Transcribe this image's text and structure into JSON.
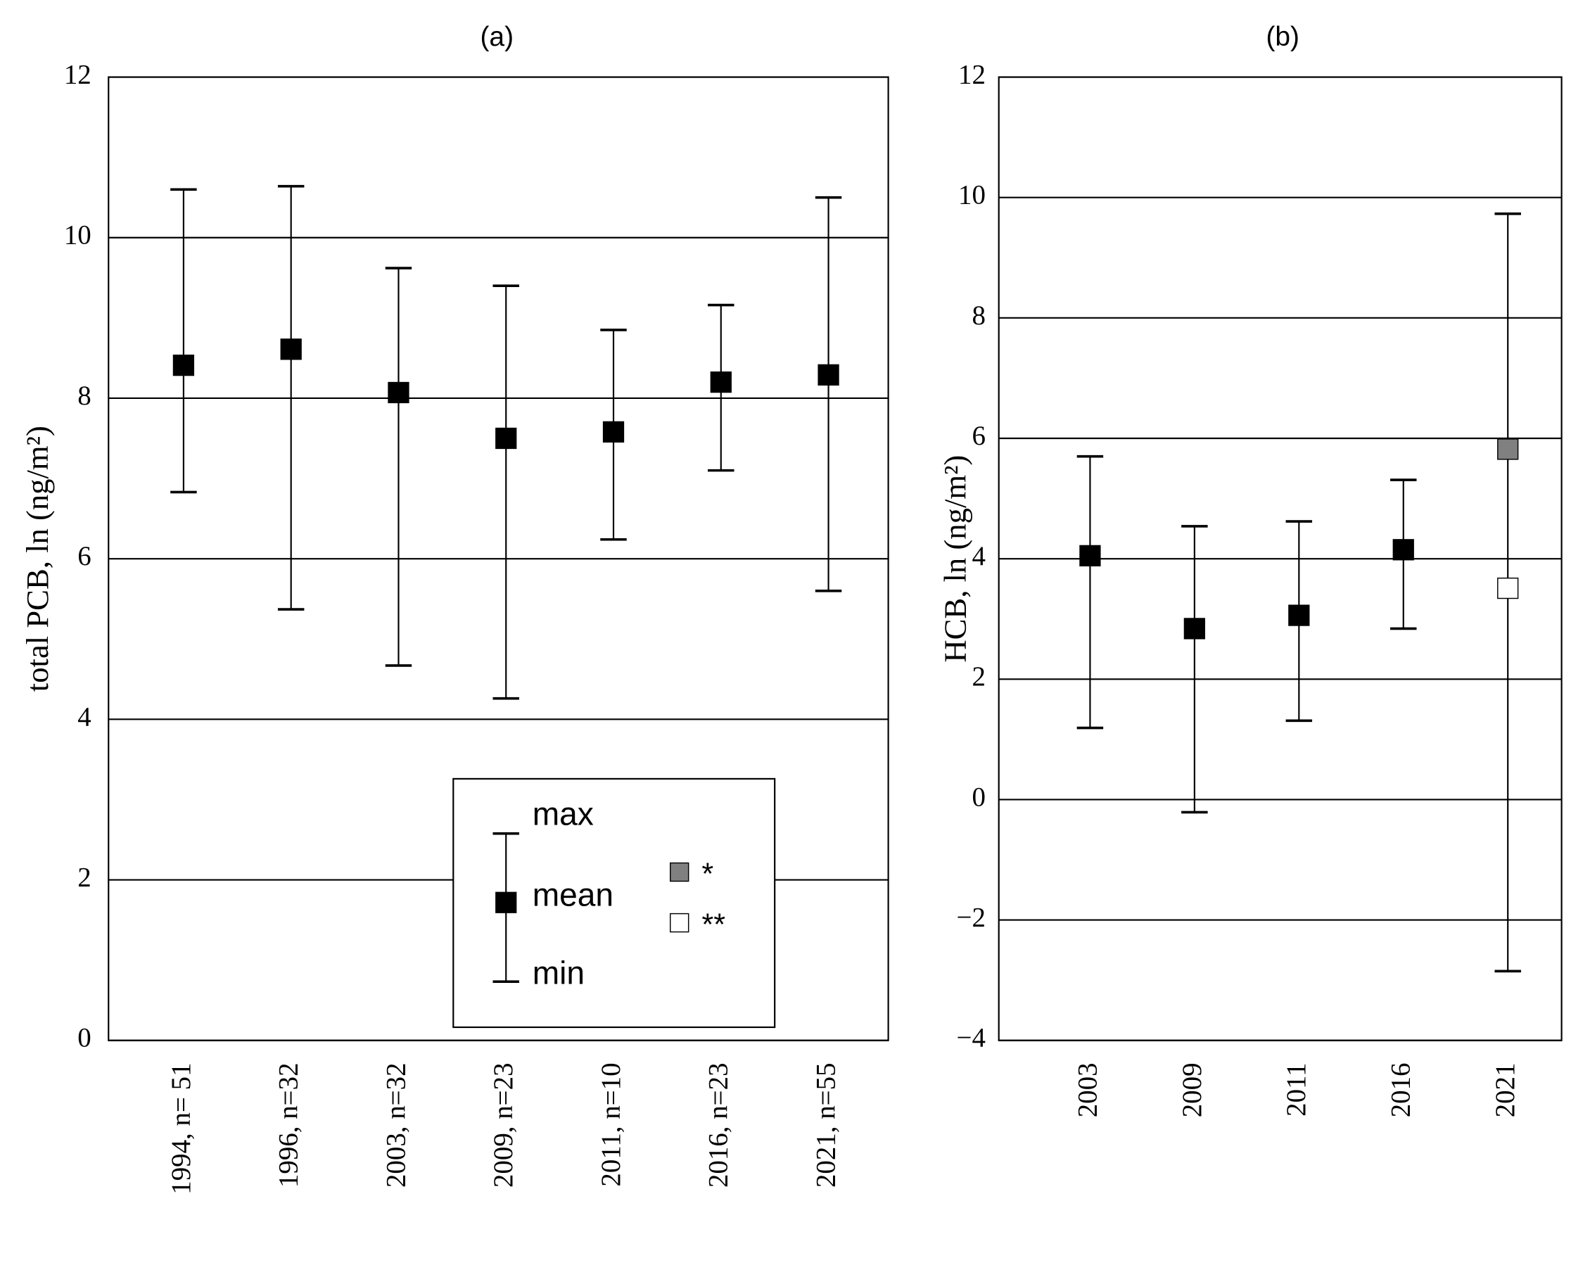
{
  "chart_data": [
    {
      "type": "errorbar",
      "title": "(a)",
      "y_label": "total PCB, ln (ng/m²)",
      "categories": [
        "1994, n= 51",
        "1996, n=32",
        "2003, n=32",
        "2009, n=23",
        "2011, n=10",
        "2016, n=23",
        "2021, n=55"
      ],
      "series": [
        {
          "name": "max",
          "values": [
            10.6,
            10.64,
            9.62,
            9.4,
            8.85,
            9.16,
            10.5
          ]
        },
        {
          "name": "mean",
          "color": "#000000",
          "values": [
            8.41,
            8.61,
            8.07,
            7.5,
            7.58,
            8.2,
            8.29
          ]
        },
        {
          "name": "min",
          "values": [
            6.83,
            5.37,
            4.67,
            4.26,
            6.24,
            7.1,
            5.6
          ]
        }
      ],
      "ylim": [
        0,
        12
      ],
      "yticks": [
        0,
        2,
        4,
        6,
        8,
        10,
        12
      ],
      "grid": true
    },
    {
      "type": "errorbar",
      "title": "(b)",
      "y_label": "HCB, ln (ng/m²)",
      "categories": [
        "2003",
        "2009",
        "2011",
        "2016",
        "2021"
      ],
      "series": [
        {
          "name": "max",
          "values": [
            5.7,
            4.54,
            4.62,
            5.31,
            9.73
          ]
        },
        {
          "name": "mean",
          "color": "#000000",
          "values": [
            4.05,
            2.84,
            3.06,
            4.15,
            null
          ]
        },
        {
          "name": "min",
          "values": [
            1.19,
            -0.21,
            1.31,
            2.84,
            -2.85
          ]
        },
        {
          "name": "*",
          "color": "#808080",
          "values": [
            null,
            null,
            null,
            null,
            5.82
          ]
        },
        {
          "name": "**",
          "color": "#ffffff",
          "values": [
            null,
            null,
            null,
            null,
            3.51
          ]
        }
      ],
      "ylim": [
        -4,
        12
      ],
      "yticks": [
        {
          "value": -4,
          "label": "−4"
        },
        {
          "value": -2,
          "label": "−2"
        },
        0,
        2,
        4,
        6,
        8,
        10,
        12
      ],
      "grid": true
    }
  ]
}
